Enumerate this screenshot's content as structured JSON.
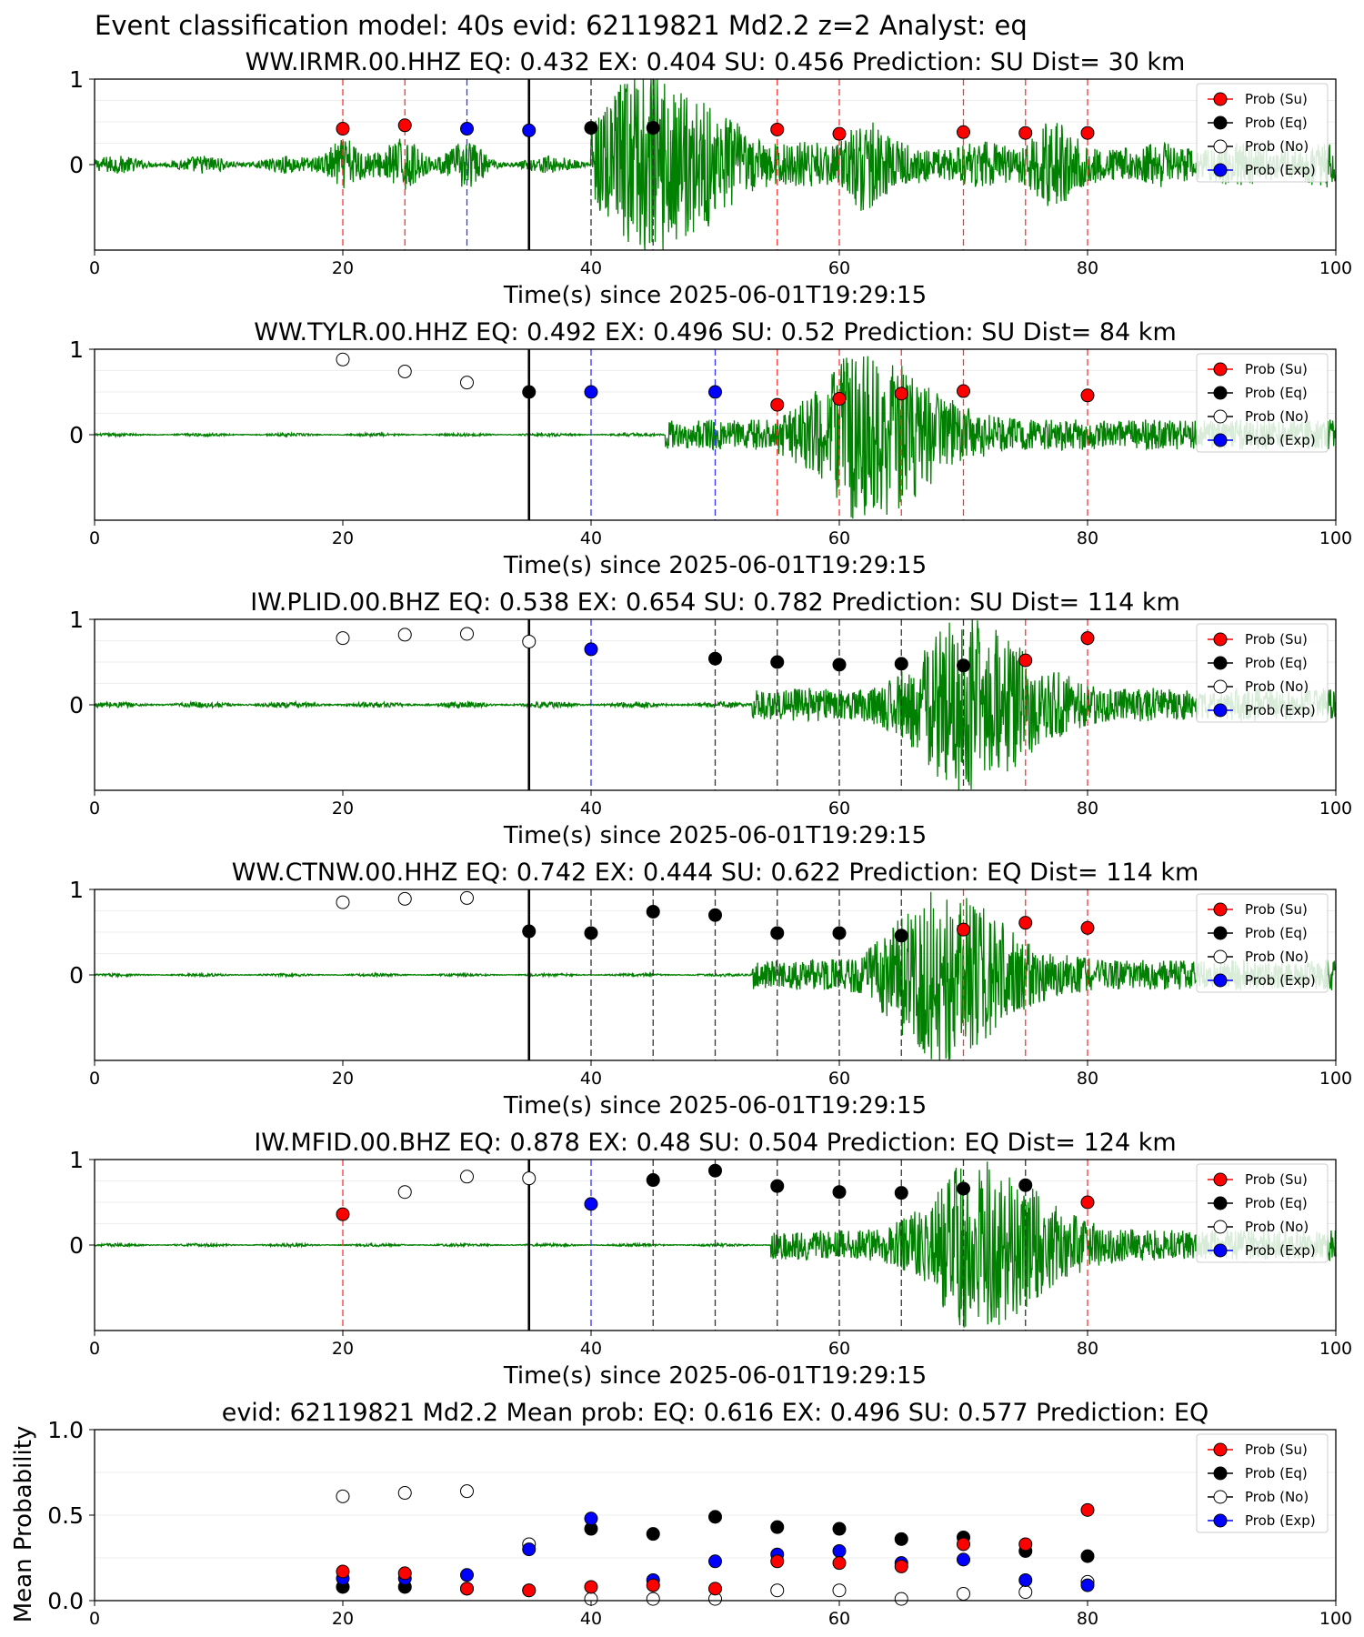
{
  "figure": {
    "suptitle": "Event classification model: 40s evid: 62119821 Md2.2 z=2 Analyst: eq"
  },
  "legend": {
    "entries": [
      {
        "label": "Prob (Su)",
        "color": "#ff0000"
      },
      {
        "label": "Prob (Eq)",
        "color": "#000000"
      },
      {
        "label": "Prob (No)",
        "color": "#ffffff"
      },
      {
        "label": "Prob (Exp)",
        "color": "#0000ff"
      }
    ]
  },
  "colors": {
    "waveform": "#008000",
    "su": "#ff0000",
    "eq": "#000000",
    "no": "#ffffff",
    "exp": "#0000ff",
    "line_su": "#ff3333",
    "line_eq": "#333333",
    "line_exp": "#3333ff"
  },
  "chart_data": [
    {
      "type": "scatter",
      "title": "WW.IRMR.00.HHZ   EQ: 0.432  EX: 0.404  SU: 0.456   Prediction: SU    Dist= 30 km",
      "xlabel": "Time(s) since 2025-06-01T19:29:15",
      "xlim": [
        0,
        100
      ],
      "xticks": [
        "0",
        "20",
        "40",
        "60",
        "80",
        "100"
      ],
      "yticks": [
        "1",
        "0"
      ],
      "ylim": [
        -1,
        1
      ],
      "origin_time": 35,
      "waveform": {
        "onset": 40,
        "peak": 44.5,
        "end": 100,
        "pre_noise": 0.12,
        "peak_amp": 1.0,
        "bursts": [
          [
            20,
            0.3
          ],
          [
            25,
            0.3
          ],
          [
            30,
            0.2
          ],
          [
            62,
            0.4
          ],
          [
            77,
            0.35
          ]
        ]
      },
      "points": [
        {
          "x": 20,
          "y": 0.42,
          "class": "su"
        },
        {
          "x": 25,
          "y": 0.46,
          "class": "su"
        },
        {
          "x": 30,
          "y": 0.42,
          "class": "exp"
        },
        {
          "x": 35,
          "y": 0.4,
          "class": "exp"
        },
        {
          "x": 40,
          "y": 0.43,
          "class": "eq"
        },
        {
          "x": 45,
          "y": 0.43,
          "class": "eq"
        },
        {
          "x": 55,
          "y": 0.41,
          "class": "su"
        },
        {
          "x": 60,
          "y": 0.36,
          "class": "su"
        },
        {
          "x": 70,
          "y": 0.38,
          "class": "su"
        },
        {
          "x": 75,
          "y": 0.37,
          "class": "su"
        },
        {
          "x": 80,
          "y": 0.37,
          "class": "su"
        }
      ]
    },
    {
      "type": "scatter",
      "title": "WW.TYLR.00.HHZ   EQ: 0.492  EX: 0.496  SU: 0.52   Prediction: SU    Dist= 84 km",
      "xlabel": "Time(s) since 2025-06-01T19:29:15",
      "xlim": [
        0,
        100
      ],
      "xticks": [
        "0",
        "20",
        "40",
        "60",
        "80",
        "100"
      ],
      "yticks": [
        "1",
        "0"
      ],
      "ylim": [
        -1,
        1
      ],
      "origin_time": 35,
      "waveform": {
        "onset": 46,
        "peak": 62,
        "end": 100,
        "pre_noise": 0.02,
        "peak_amp": 0.95,
        "bursts": []
      },
      "points": [
        {
          "x": 20,
          "y": 0.88,
          "class": "no"
        },
        {
          "x": 25,
          "y": 0.74,
          "class": "no"
        },
        {
          "x": 30,
          "y": 0.61,
          "class": "no"
        },
        {
          "x": 35,
          "y": 0.5,
          "class": "eq"
        },
        {
          "x": 40,
          "y": 0.5,
          "class": "exp"
        },
        {
          "x": 50,
          "y": 0.5,
          "class": "exp"
        },
        {
          "x": 55,
          "y": 0.35,
          "class": "su"
        },
        {
          "x": 60,
          "y": 0.42,
          "class": "su"
        },
        {
          "x": 65,
          "y": 0.48,
          "class": "su"
        },
        {
          "x": 70,
          "y": 0.51,
          "class": "su"
        },
        {
          "x": 80,
          "y": 0.46,
          "class": "su"
        }
      ]
    },
    {
      "type": "scatter",
      "title": "IW.PLID.00.BHZ   EQ: 0.538  EX: 0.654  SU: 0.782   Prediction: SU    Dist= 114 km",
      "xlabel": "Time(s) since 2025-06-01T19:29:15",
      "xlim": [
        0,
        100
      ],
      "xticks": [
        "0",
        "20",
        "40",
        "60",
        "80",
        "100"
      ],
      "yticks": [
        "1",
        "0"
      ],
      "ylim": [
        -1,
        1
      ],
      "origin_time": 35,
      "waveform": {
        "onset": 53,
        "peak": 70,
        "end": 100,
        "pre_noise": 0.04,
        "peak_amp": 0.95,
        "bursts": []
      },
      "points": [
        {
          "x": 20,
          "y": 0.78,
          "class": "no"
        },
        {
          "x": 25,
          "y": 0.82,
          "class": "no"
        },
        {
          "x": 30,
          "y": 0.83,
          "class": "no"
        },
        {
          "x": 35,
          "y": 0.74,
          "class": "no"
        },
        {
          "x": 40,
          "y": 0.65,
          "class": "exp"
        },
        {
          "x": 50,
          "y": 0.54,
          "class": "eq"
        },
        {
          "x": 55,
          "y": 0.5,
          "class": "eq"
        },
        {
          "x": 60,
          "y": 0.47,
          "class": "eq"
        },
        {
          "x": 65,
          "y": 0.48,
          "class": "eq"
        },
        {
          "x": 70,
          "y": 0.46,
          "class": "eq"
        },
        {
          "x": 75,
          "y": 0.52,
          "class": "su"
        },
        {
          "x": 80,
          "y": 0.78,
          "class": "su"
        }
      ]
    },
    {
      "type": "scatter",
      "title": "WW.CTNW.00.HHZ   EQ: 0.742  EX: 0.444  SU: 0.622   Prediction: EQ    Dist= 114 km",
      "xlabel": "Time(s) since 2025-06-01T19:29:15",
      "xlim": [
        0,
        100
      ],
      "xticks": [
        "0",
        "20",
        "40",
        "60",
        "80",
        "100"
      ],
      "yticks": [
        "1",
        "0"
      ],
      "ylim": [
        -1,
        1
      ],
      "origin_time": 35,
      "waveform": {
        "onset": 53,
        "peak": 68,
        "end": 100,
        "pre_noise": 0.02,
        "peak_amp": 0.95,
        "bursts": []
      },
      "points": [
        {
          "x": 20,
          "y": 0.85,
          "class": "no"
        },
        {
          "x": 25,
          "y": 0.89,
          "class": "no"
        },
        {
          "x": 30,
          "y": 0.9,
          "class": "no"
        },
        {
          "x": 35,
          "y": 0.51,
          "class": "eq"
        },
        {
          "x": 40,
          "y": 0.49,
          "class": "eq"
        },
        {
          "x": 45,
          "y": 0.74,
          "class": "eq"
        },
        {
          "x": 50,
          "y": 0.7,
          "class": "eq"
        },
        {
          "x": 55,
          "y": 0.49,
          "class": "eq"
        },
        {
          "x": 60,
          "y": 0.49,
          "class": "eq"
        },
        {
          "x": 65,
          "y": 0.46,
          "class": "eq"
        },
        {
          "x": 70,
          "y": 0.53,
          "class": "su"
        },
        {
          "x": 75,
          "y": 0.61,
          "class": "su"
        },
        {
          "x": 80,
          "y": 0.55,
          "class": "su"
        }
      ]
    },
    {
      "type": "scatter",
      "title": "IW.MFID.00.BHZ   EQ: 0.878  EX: 0.48  SU: 0.504   Prediction: EQ    Dist= 124 km",
      "xlabel": "Time(s) since 2025-06-01T19:29:15",
      "xlim": [
        0,
        100
      ],
      "xticks": [
        "0",
        "20",
        "40",
        "60",
        "80",
        "100"
      ],
      "yticks": [
        "1",
        "0"
      ],
      "ylim": [
        -1,
        1
      ],
      "origin_time": 35,
      "waveform": {
        "onset": 54.5,
        "peak": 71,
        "end": 100,
        "pre_noise": 0.02,
        "peak_amp": 0.95,
        "bursts": []
      },
      "points": [
        {
          "x": 20,
          "y": 0.36,
          "class": "su"
        },
        {
          "x": 25,
          "y": 0.62,
          "class": "no"
        },
        {
          "x": 30,
          "y": 0.8,
          "class": "no"
        },
        {
          "x": 35,
          "y": 0.78,
          "class": "no"
        },
        {
          "x": 40,
          "y": 0.48,
          "class": "exp"
        },
        {
          "x": 45,
          "y": 0.76,
          "class": "eq"
        },
        {
          "x": 50,
          "y": 0.87,
          "class": "eq"
        },
        {
          "x": 55,
          "y": 0.69,
          "class": "eq"
        },
        {
          "x": 60,
          "y": 0.62,
          "class": "eq"
        },
        {
          "x": 65,
          "y": 0.61,
          "class": "eq"
        },
        {
          "x": 70,
          "y": 0.66,
          "class": "eq"
        },
        {
          "x": 75,
          "y": 0.7,
          "class": "eq"
        },
        {
          "x": 80,
          "y": 0.5,
          "class": "su"
        }
      ]
    },
    {
      "type": "scatter",
      "title": "evid: 62119821  Md2.2   Mean prob:   EQ: 0.616  EX: 0.496  SU: 0.577   Prediction: EQ",
      "xlabel": "",
      "ylabel": "Mean Probability",
      "xlim": [
        0,
        100
      ],
      "ylim": [
        0,
        1
      ],
      "xticks": [
        "0",
        "20",
        "40",
        "60",
        "80",
        "100"
      ],
      "yticks": [
        "1.0",
        "0.5",
        "0.0"
      ],
      "x": [
        20,
        25,
        30,
        35,
        40,
        45,
        50,
        55,
        60,
        65,
        70,
        75,
        80
      ],
      "series": [
        {
          "name": "Prob (No)",
          "class": "no",
          "values": [
            0.61,
            0.63,
            0.64,
            0.33,
            0.01,
            0.01,
            0.01,
            0.06,
            0.06,
            0.01,
            0.04,
            0.05,
            0.11
          ]
        },
        {
          "name": "Prob (Eq)",
          "class": "eq",
          "values": [
            0.08,
            0.08,
            0.07,
            0.06,
            0.42,
            0.39,
            0.49,
            0.43,
            0.42,
            0.36,
            0.37,
            0.29,
            0.26
          ]
        },
        {
          "name": "Prob (Exp)",
          "class": "exp",
          "values": [
            0.13,
            0.13,
            0.15,
            0.3,
            0.48,
            0.12,
            0.23,
            0.27,
            0.29,
            0.22,
            0.24,
            0.12,
            0.09
          ]
        },
        {
          "name": "Prob (Su)",
          "class": "su",
          "values": [
            0.17,
            0.16,
            0.07,
            0.06,
            0.08,
            0.09,
            0.07,
            0.23,
            0.22,
            0.2,
            0.33,
            0.33,
            0.53
          ]
        }
      ]
    }
  ]
}
